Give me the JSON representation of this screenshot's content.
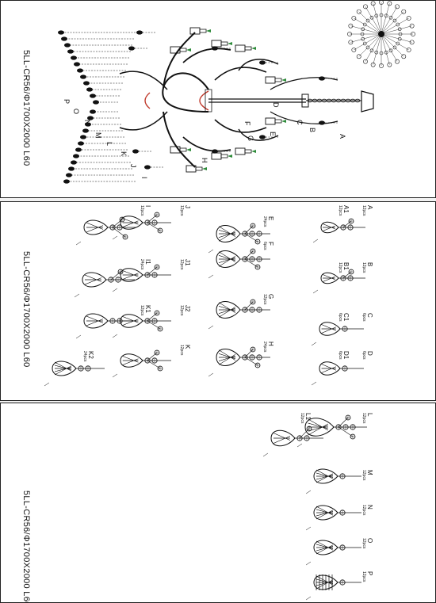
{
  "model_code": "5LL-CR56/Φ1700X2000 L60",
  "sheet1": {
    "part_letters": [
      "A",
      "B",
      "C",
      "D",
      "E",
      "F",
      "G",
      "H",
      "I",
      "J",
      "K",
      "L",
      "M",
      "N",
      "O",
      "P"
    ]
  },
  "sheet2": {
    "parts": [
      {
        "id": "A",
        "qty": "12pcs"
      },
      {
        "id": "B",
        "qty": "12pcs"
      },
      {
        "id": "C",
        "qty": "6pcs"
      },
      {
        "id": "D",
        "qty": "6pcs"
      },
      {
        "id": "A1",
        "qty": "12pcs"
      },
      {
        "id": "B1",
        "qty": "12pcs"
      },
      {
        "id": "C1",
        "qty": "6pcs"
      },
      {
        "id": "D1",
        "qty": "6pcs"
      },
      {
        "id": "E",
        "qty": "24pcs"
      },
      {
        "id": "F",
        "qty": "6pcs"
      },
      {
        "id": "G",
        "qty": "12pcs"
      },
      {
        "id": "H",
        "qty": "24pcs"
      },
      {
        "id": "I",
        "qty": "12pcs"
      },
      {
        "id": "J",
        "qty": "12pcs"
      },
      {
        "id": "J1",
        "qty": "12pcs"
      },
      {
        "id": "K",
        "qty": "12pcs"
      },
      {
        "id": "I1",
        "qty": "24pcs"
      },
      {
        "id": "J2",
        "qty": "12pcs"
      },
      {
        "id": "K1",
        "qty": "12pcs"
      },
      {
        "id": "K2",
        "qty": "24pcs"
      }
    ]
  },
  "sheet3": {
    "parts": [
      {
        "id": "L",
        "qty": "12pcs"
      },
      {
        "id": "L1",
        "qty": "12pcs"
      },
      {
        "id": "M",
        "qty": "12pcs"
      },
      {
        "id": "N",
        "qty": "12pcs"
      },
      {
        "id": "O",
        "qty": "12pcs"
      },
      {
        "id": "P",
        "qty": "12pcs"
      }
    ]
  }
}
